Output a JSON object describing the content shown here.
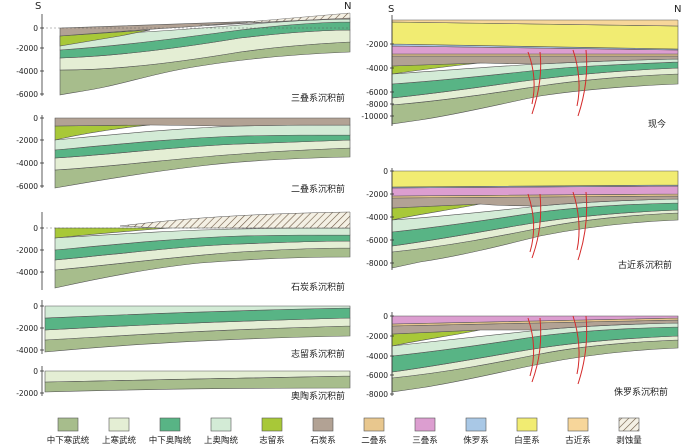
{
  "direction_labels": {
    "south": "S",
    "north": "N"
  },
  "panels": [
    {
      "id": "permian",
      "caption": "三叠系沉积前",
      "ticks": [
        "0",
        "-2000",
        "-4000",
        "-6000"
      ]
    },
    {
      "id": "carbon",
      "caption": "二叠系沉积前",
      "ticks": [
        "0",
        "-2000",
        "-4000",
        "-6000"
      ]
    },
    {
      "id": "devon",
      "caption": "石炭系沉积前",
      "ticks": [
        "0",
        "-2000",
        "-4000"
      ]
    },
    {
      "id": "silur",
      "caption": "志留系沉积前",
      "ticks": [
        "0",
        "-2000",
        "-4000"
      ]
    },
    {
      "id": "ordov",
      "caption": "奥陶系沉积前",
      "ticks": [
        "0",
        "-2000"
      ]
    },
    {
      "id": "present",
      "caption": "现今",
      "ticks": [
        "-2000",
        "-4000",
        "-6000",
        "-8000",
        "-10000"
      ]
    },
    {
      "id": "paleo",
      "caption": "古近系沉积前",
      "ticks": [
        "0",
        "-2000",
        "-4000",
        "-6000",
        "-8000"
      ]
    },
    {
      "id": "jura",
      "caption": "侏罗系沉积前",
      "ticks": [
        "0",
        "-2000",
        "-4000",
        "-6000",
        "-8000"
      ]
    }
  ],
  "legend": [
    {
      "label": "中下寒武统",
      "color": "#a7bd8c"
    },
    {
      "label": "上寒武统",
      "color": "#e4eed4"
    },
    {
      "label": "中下奥陶统",
      "color": "#58b485"
    },
    {
      "label": "上奥陶统",
      "color": "#d3ebd6"
    },
    {
      "label": "志留系",
      "color": "#a8c838"
    },
    {
      "label": "石炭系",
      "color": "#b2a294"
    },
    {
      "label": "二叠系",
      "color": "#e8c78e"
    },
    {
      "label": "三叠系",
      "color": "#dc9ed0"
    },
    {
      "label": "侏罗系",
      "color": "#a9c8e6"
    },
    {
      "label": "白垩系",
      "color": "#f1ec72"
    },
    {
      "label": "古近系",
      "color": "#f7d69a"
    },
    {
      "label": "剥蚀量",
      "color": "hatch"
    }
  ],
  "colors": {
    "camb_lower": "#a7bd8c",
    "camb_upper": "#e4eed4",
    "ord_lower": "#58b485",
    "ord_upper": "#d3ebd6",
    "silurian": "#a8c838",
    "carboniferous": "#b2a294",
    "permian": "#e8c78e",
    "triassic": "#dc9ed0",
    "jurassic": "#a9c8e6",
    "cretaceous": "#f1ec72",
    "paleogene": "#f7d69a",
    "fault": "#d42a2a"
  }
}
